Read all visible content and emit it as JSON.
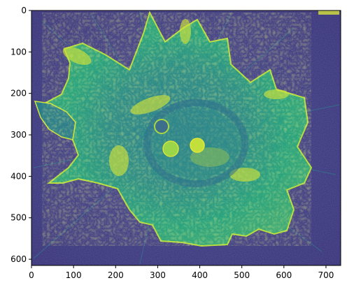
{
  "figure": {
    "kind": "image display (imshow) of a microscopy cell image, viridis colormap",
    "colormap": "viridis",
    "colors": {
      "background_dark": "#3b2f7c",
      "mid": "#2b8f8a",
      "bright": "#d9e43a",
      "axes_frame": "#000000"
    },
    "x_axis": {
      "range": [
        0,
        735
      ],
      "ticks": [
        {
          "value": 0,
          "label": "0"
        },
        {
          "value": 100,
          "label": "100"
        },
        {
          "value": 200,
          "label": "200"
        },
        {
          "value": 300,
          "label": "300"
        },
        {
          "value": 400,
          "label": "400"
        },
        {
          "value": 500,
          "label": "500"
        },
        {
          "value": 600,
          "label": "600"
        },
        {
          "value": 700,
          "label": "700"
        }
      ]
    },
    "y_axis": {
      "range": [
        0,
        615
      ],
      "inverted": true,
      "ticks": [
        {
          "value": 0,
          "label": "0"
        },
        {
          "value": 100,
          "label": "100"
        },
        {
          "value": 200,
          "label": "200"
        },
        {
          "value": 300,
          "label": "300"
        },
        {
          "value": 400,
          "label": "400"
        },
        {
          "value": 500,
          "label": "500"
        },
        {
          "value": 600,
          "label": "600"
        }
      ]
    }
  }
}
